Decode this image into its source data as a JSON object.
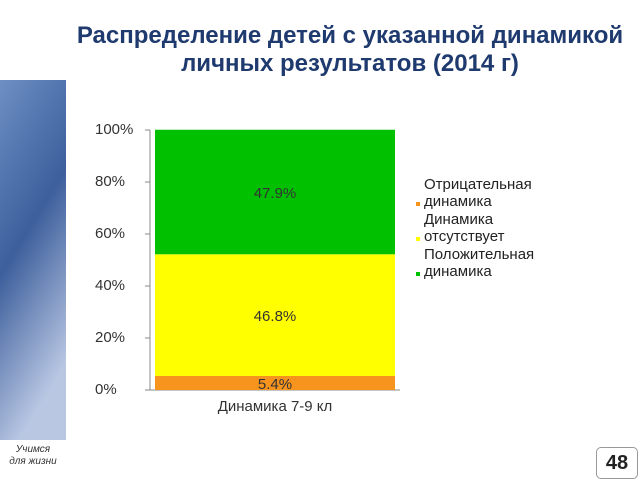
{
  "chart_data": {
    "type": "stacked_bar",
    "title": "Распределение детей с указанной динамикой личных результатов (2014 г)",
    "categories": [
      "Динамика 7-9 кл"
    ],
    "series": [
      {
        "name": "Отрицательная динамика",
        "color": "#f7941d",
        "values": [
          5.4
        ],
        "value_labels": [
          "5.4%"
        ]
      },
      {
        "name": "Динамика отсутствует",
        "color": "#ffff00",
        "values": [
          46.8
        ],
        "value_labels": [
          "46.8%"
        ]
      },
      {
        "name": "Положительная динамика",
        "color": "#00c000",
        "values": [
          47.9
        ],
        "value_labels": [
          "47.9%"
        ]
      }
    ],
    "ylim": [
      0,
      100
    ],
    "yticks": [
      {
        "value": 0,
        "label": "0%"
      },
      {
        "value": 20,
        "label": "20%"
      },
      {
        "value": 40,
        "label": "40%"
      },
      {
        "value": 60,
        "label": "60%"
      },
      {
        "value": 80,
        "label": "80%"
      },
      {
        "value": 100,
        "label": "100%"
      }
    ],
    "grid": false,
    "legend": "right"
  },
  "slide": {
    "logo_lines": [
      "Учимся",
      "для жизни"
    ],
    "page_number": "48"
  }
}
